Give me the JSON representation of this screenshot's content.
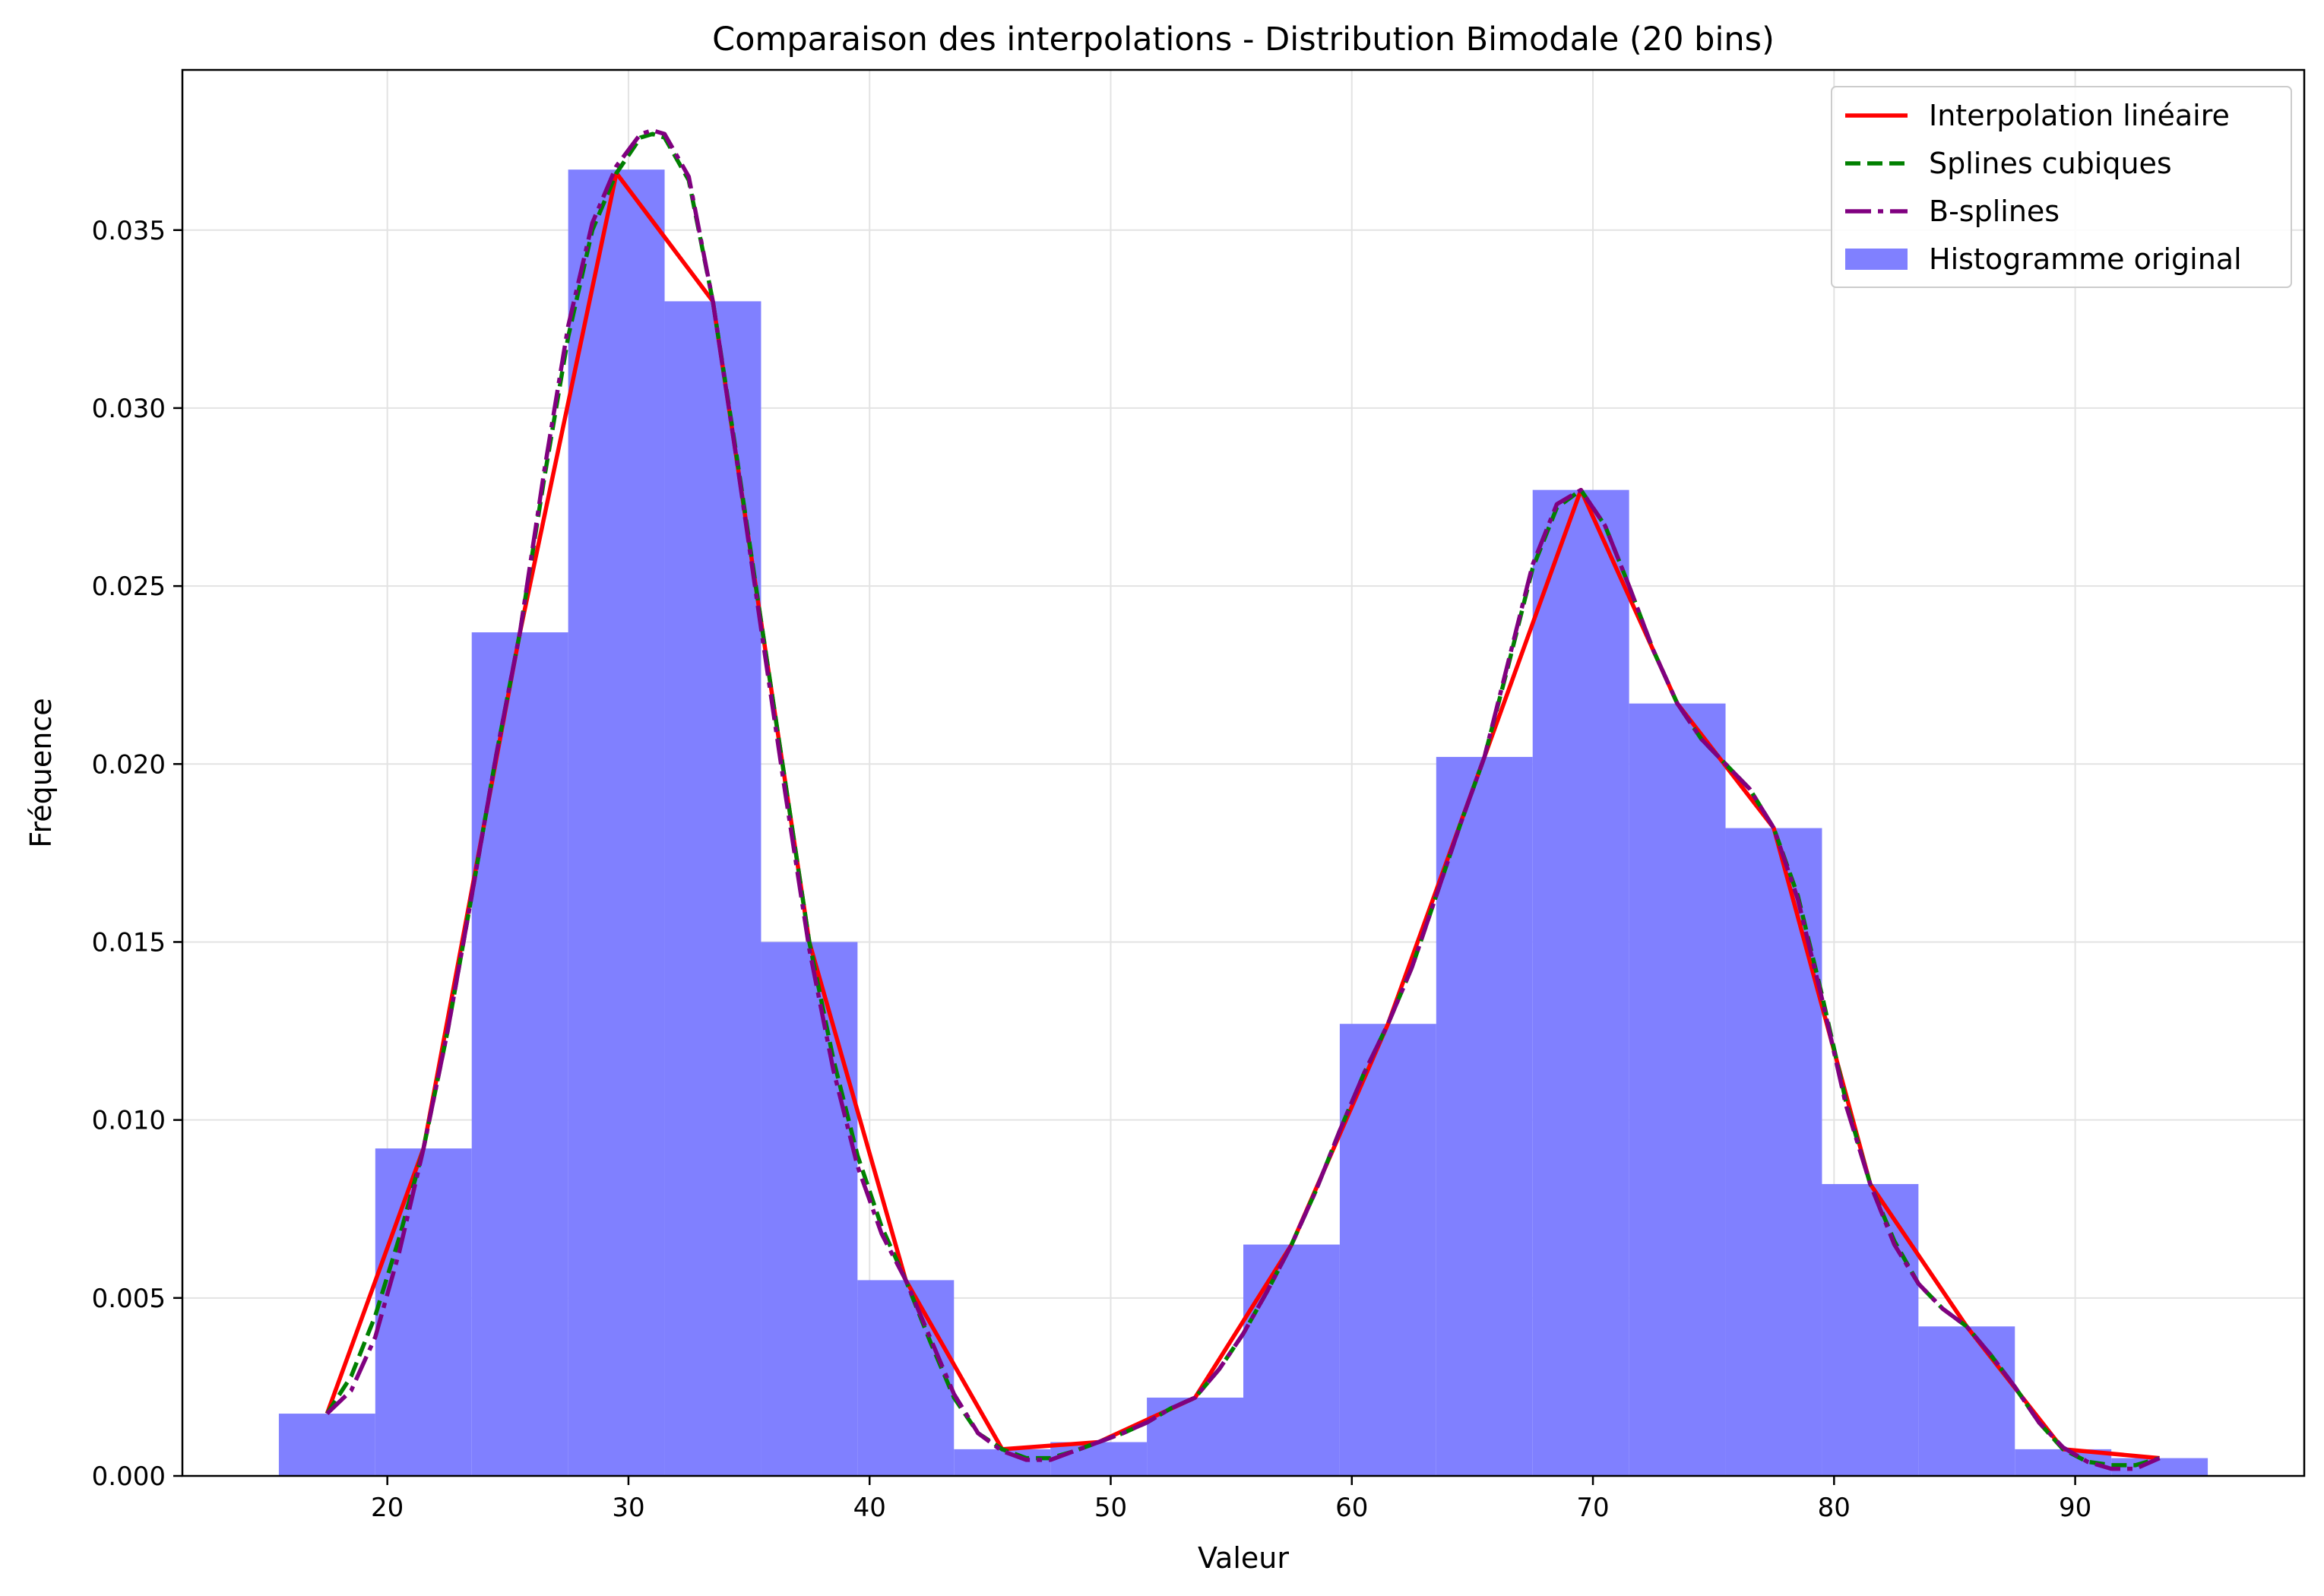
{
  "chart_data": {
    "type": "bar",
    "title": "Comparaison des interpolations - Distribution Bimodale (20 bins)",
    "xlabel": "Valeur",
    "ylabel": "Fréquence",
    "xlim": [
      11.5,
      99.5
    ],
    "ylim": [
      0.0,
      0.0395
    ],
    "grid": true,
    "legend_position": "top-right",
    "x_ticks": [
      20,
      30,
      40,
      50,
      60,
      70,
      80,
      90
    ],
    "y_ticks": [
      0.0,
      0.005,
      0.01,
      0.015,
      0.02,
      0.025,
      0.03,
      0.035
    ],
    "y_tick_labels": [
      "0.000",
      "0.005",
      "0.010",
      "0.015",
      "0.020",
      "0.025",
      "0.030",
      "0.035"
    ],
    "bin_edges": [
      15.5,
      19.5,
      23.5,
      27.5,
      31.5,
      35.5,
      39.5,
      43.5,
      47.5,
      51.5,
      55.5,
      59.5,
      63.5,
      67.5,
      71.5,
      75.5,
      79.5,
      83.5,
      87.5,
      91.5,
      95.5
    ],
    "bin_centers": [
      17.5,
      21.5,
      25.5,
      29.5,
      33.5,
      37.5,
      41.5,
      45.5,
      49.5,
      53.5,
      57.5,
      61.5,
      65.5,
      69.5,
      73.5,
      77.5,
      81.5,
      85.5,
      89.5,
      93.5
    ],
    "series": [
      {
        "name": "Interpolation linéaire",
        "kind": "line",
        "color": "#ff0000",
        "x": [
          17.5,
          21.5,
          25.5,
          29.5,
          33.5,
          37.5,
          41.5,
          45.5,
          49.5,
          53.5,
          57.5,
          61.5,
          65.5,
          69.5,
          73.5,
          77.5,
          81.5,
          85.5,
          89.5,
          93.5
        ],
        "values": [
          0.00175,
          0.0092,
          0.0237,
          0.0366,
          0.033,
          0.015,
          0.0055,
          0.00075,
          0.00095,
          0.0022,
          0.0065,
          0.0127,
          0.0202,
          0.0277,
          0.0217,
          0.0182,
          0.0082,
          0.0042,
          0.00075,
          0.0005
        ]
      },
      {
        "name": "Splines cubiques",
        "kind": "line",
        "color": "#008000",
        "x": [
          17.5,
          18.5,
          19.5,
          20.5,
          21.5,
          22.5,
          23.5,
          24.5,
          25.5,
          26.5,
          27.5,
          28.5,
          29.5,
          30.5,
          31.0,
          31.5,
          32.5,
          33.5,
          34.5,
          35.5,
          36.5,
          37.5,
          38.5,
          39.5,
          40.5,
          41.5,
          42.5,
          43.5,
          44.5,
          45.5,
          46.5,
          47.5,
          48.5,
          49.5,
          50.5,
          51.5,
          52.5,
          53.5,
          54.5,
          55.5,
          56.5,
          57.5,
          58.5,
          59.5,
          60.5,
          61.5,
          62.5,
          63.5,
          64.5,
          65.5,
          66.5,
          67.5,
          68.5,
          69.5,
          70.5,
          71.5,
          72.5,
          73.5,
          74.5,
          75.5,
          76.5,
          77.5,
          78.5,
          79.5,
          80.5,
          81.5,
          82.5,
          83.5,
          84.5,
          85.5,
          86.5,
          87.5,
          88.5,
          89.5,
          90.5,
          91.5,
          92.5,
          93.5
        ],
        "values": [
          0.00175,
          0.0028,
          0.0045,
          0.0067,
          0.0092,
          0.0125,
          0.0163,
          0.0202,
          0.0237,
          0.028,
          0.032,
          0.035,
          0.0366,
          0.0376,
          0.0377,
          0.0376,
          0.0364,
          0.033,
          0.0286,
          0.024,
          0.0195,
          0.015,
          0.0117,
          0.009,
          0.007,
          0.0055,
          0.0038,
          0.0022,
          0.0012,
          0.00075,
          0.0005,
          0.0005,
          0.0007,
          0.00095,
          0.0012,
          0.0015,
          0.0019,
          0.0022,
          0.003,
          0.004,
          0.0052,
          0.0065,
          0.008,
          0.0097,
          0.0113,
          0.0127,
          0.0143,
          0.0163,
          0.0183,
          0.0202,
          0.0228,
          0.0255,
          0.0272,
          0.0277,
          0.0267,
          0.025,
          0.0232,
          0.0217,
          0.0207,
          0.02,
          0.0193,
          0.0182,
          0.0163,
          0.0135,
          0.0105,
          0.0082,
          0.0066,
          0.0054,
          0.0047,
          0.0042,
          0.0034,
          0.0025,
          0.0015,
          0.00075,
          0.0004,
          0.0003,
          0.0003,
          0.0005
        ]
      },
      {
        "name": "B-splines",
        "kind": "line",
        "color": "#800080",
        "x": [
          17.5,
          18.5,
          19.5,
          20.5,
          21.5,
          22.5,
          23.5,
          24.5,
          25.5,
          26.5,
          27.5,
          28.5,
          29.5,
          30.5,
          31.0,
          31.5,
          32.5,
          33.5,
          34.5,
          35.5,
          36.5,
          37.5,
          38.5,
          39.5,
          40.5,
          41.5,
          42.5,
          43.5,
          44.5,
          45.5,
          46.5,
          47.5,
          48.5,
          49.5,
          50.5,
          51.5,
          52.5,
          53.5,
          54.5,
          55.5,
          56.5,
          57.5,
          58.5,
          59.5,
          60.5,
          61.5,
          62.5,
          63.5,
          64.5,
          65.5,
          66.5,
          67.5,
          68.5,
          69.5,
          70.5,
          71.5,
          72.5,
          73.5,
          74.5,
          75.5,
          76.5,
          77.5,
          78.5,
          79.5,
          80.5,
          81.5,
          82.5,
          83.5,
          84.5,
          85.5,
          86.5,
          87.5,
          88.5,
          89.5,
          90.5,
          91.5,
          92.5,
          93.5
        ],
        "values": [
          0.00175,
          0.0024,
          0.0039,
          0.0063,
          0.0092,
          0.0125,
          0.0163,
          0.0202,
          0.0237,
          0.0282,
          0.0323,
          0.0352,
          0.0368,
          0.0377,
          0.0378,
          0.0377,
          0.0365,
          0.033,
          0.0285,
          0.0238,
          0.0192,
          0.0148,
          0.0114,
          0.0087,
          0.0068,
          0.0055,
          0.0039,
          0.0023,
          0.0012,
          0.0007,
          0.00045,
          0.00045,
          0.0007,
          0.00095,
          0.0012,
          0.0015,
          0.0019,
          0.0022,
          0.003,
          0.004,
          0.0052,
          0.0065,
          0.008,
          0.0097,
          0.0113,
          0.0127,
          0.0143,
          0.0163,
          0.0183,
          0.0202,
          0.0229,
          0.0256,
          0.0273,
          0.0277,
          0.0267,
          0.025,
          0.0232,
          0.0217,
          0.0207,
          0.02,
          0.0193,
          0.0182,
          0.0162,
          0.0134,
          0.0104,
          0.0082,
          0.0065,
          0.0054,
          0.0047,
          0.0042,
          0.0034,
          0.0025,
          0.0015,
          0.0008,
          0.0004,
          0.0002,
          0.0002,
          0.0005
        ]
      },
      {
        "name": "Histogramme original",
        "kind": "bar",
        "color": "#8080ff",
        "values": [
          0.00175,
          0.0092,
          0.0237,
          0.0367,
          0.033,
          0.015,
          0.0055,
          0.00075,
          0.00095,
          0.0022,
          0.0065,
          0.0127,
          0.0202,
          0.0277,
          0.0217,
          0.0182,
          0.0082,
          0.0042,
          0.00075,
          0.0005
        ]
      }
    ]
  }
}
